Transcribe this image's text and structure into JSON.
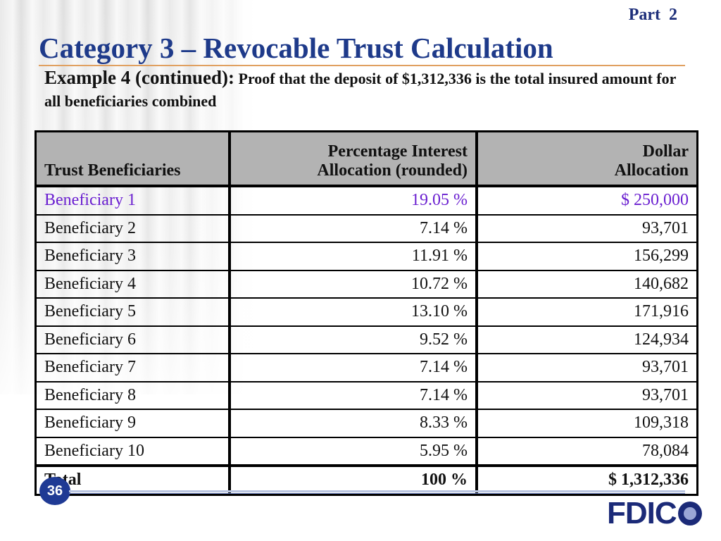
{
  "header": {
    "part": "Part  2",
    "title": "Category 3 – Revocable Trust Calculation",
    "subtitle_lead": "Example 4 (continued):",
    "subtitle_rest": " Proof that the deposit of $1,312,336 is the total insured amount for all beneficiaries combined"
  },
  "table": {
    "headers": {
      "col1": "Trust Beneficiaries",
      "col2_line1": "Percentage Interest",
      "col2_line2": "Allocation (rounded)",
      "col3_line1": "Dollar",
      "col3_line2": "Allocation"
    },
    "rows": [
      {
        "name": "Beneficiary 1",
        "percent": "19.05 %",
        "amount": "$  250,000"
      },
      {
        "name": "Beneficiary 2",
        "percent": "7.14 %",
        "amount": "93,701"
      },
      {
        "name": "Beneficiary 3",
        "percent": "11.91 %",
        "amount": "156,299"
      },
      {
        "name": "Beneficiary 4",
        "percent": "10.72 %",
        "amount": "140,682"
      },
      {
        "name": "Beneficiary 5",
        "percent": "13.10 %",
        "amount": "171,916"
      },
      {
        "name": "Beneficiary 6",
        "percent": "9.52 %",
        "amount": "124,934"
      },
      {
        "name": "Beneficiary 7",
        "percent": "7.14 %",
        "amount": "93,701"
      },
      {
        "name": "Beneficiary 8",
        "percent": "7.14 %",
        "amount": "93,701"
      },
      {
        "name": "Beneficiary 9",
        "percent": "8.33 %",
        "amount": "109,318"
      },
      {
        "name": "Beneficiary 10",
        "percent": "5.95 %",
        "amount": "78,084"
      }
    ],
    "total": {
      "name": "Total",
      "percent": "100 %",
      "amount": "$ 1,312,336"
    }
  },
  "footer": {
    "slide_number": "36",
    "logo_text": "FDIC"
  },
  "colors": {
    "title": "#1e3a8a",
    "highlight_row": "#6a1fd0",
    "header_fill": "#b3b3b3"
  }
}
